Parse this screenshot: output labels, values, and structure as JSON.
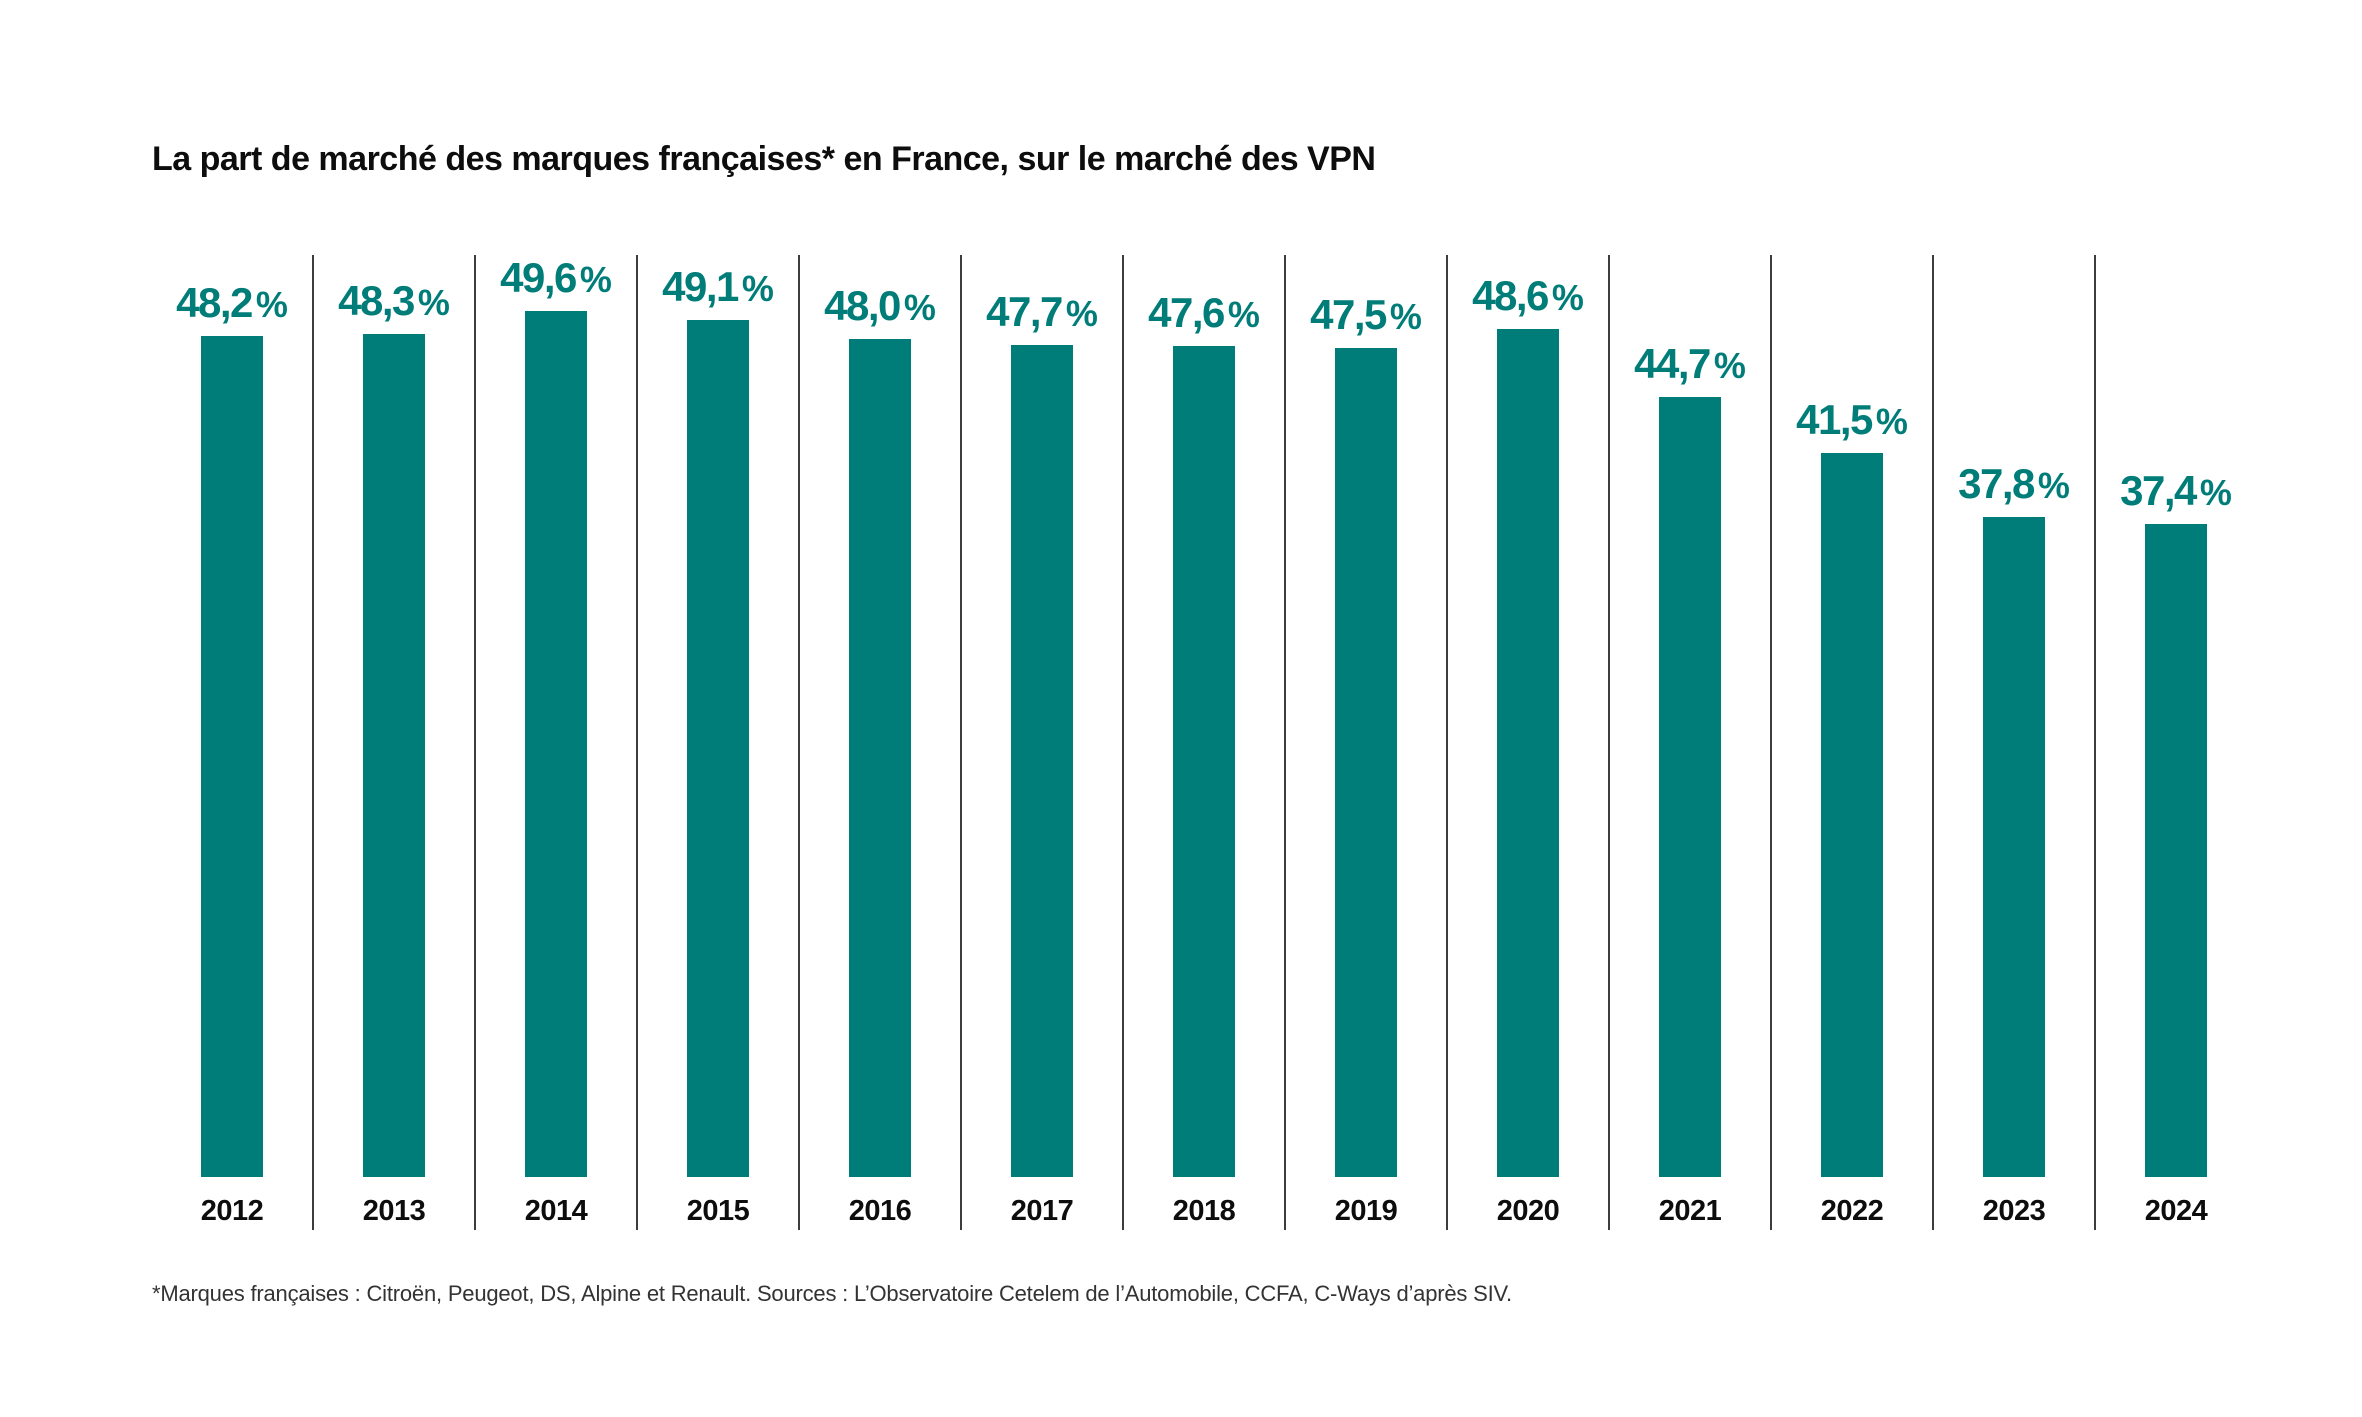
{
  "title": "La part de marché des marques françaises* en France, sur le marché des VPN",
  "footnote": "*Marques françaises : Citroën, Peugeot, DS, Alpine et Renault. Sources : L’Observatoire Cetelem de l’Automobile, CCFA, C-Ways d’après SIV.",
  "chart_data": {
    "type": "bar",
    "title": "La part de marché des marques françaises* en France, sur le marché des VPN",
    "categories": [
      "2012",
      "2013",
      "2014",
      "2015",
      "2016",
      "2017",
      "2018",
      "2019",
      "2020",
      "2021",
      "2022",
      "2023",
      "2024"
    ],
    "values": [
      48.2,
      48.3,
      49.6,
      49.1,
      48.0,
      47.7,
      47.6,
      47.5,
      48.6,
      44.7,
      41.5,
      37.8,
      37.4
    ],
    "value_labels": [
      "48,2",
      "48,3",
      "49,6",
      "49,1",
      "48,0",
      "47,7",
      "47,6",
      "47,5",
      "48,6",
      "44,7",
      "41,5",
      "37,8",
      "37,4"
    ],
    "unit": "%",
    "xlabel": "",
    "ylabel": "",
    "ylim": [
      0,
      53
    ],
    "grid": false,
    "legend": false,
    "bar_color": "#007D78",
    "label_color": "#007D78",
    "divider_color": "#3d3d3d"
  }
}
